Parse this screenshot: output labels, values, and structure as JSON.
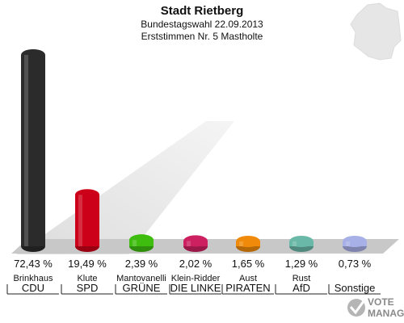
{
  "header": {
    "title": "Stadt Rietberg",
    "subtitle1": "Bundestagswahl 22.09.2013",
    "subtitle2": "Erststimmen Nr. 5 Mastholte"
  },
  "chart_data": {
    "type": "bar",
    "title": "Stadt Rietberg",
    "ylim": [
      0,
      75
    ],
    "grid": false,
    "categories": [
      {
        "candidate": "Brinkhaus",
        "party": "CDU"
      },
      {
        "candidate": "Klute",
        "party": "SPD"
      },
      {
        "candidate": "Mantovanelli",
        "party": "GRÜNE"
      },
      {
        "candidate": "Klein-Ridder",
        "party": "DIE LINKE"
      },
      {
        "candidate": "Aust",
        "party": "PIRATEN"
      },
      {
        "candidate": "Rust",
        "party": "AfD"
      },
      {
        "candidate": "",
        "party": "Sonstige"
      }
    ],
    "values": [
      72.43,
      19.49,
      2.39,
      2.02,
      1.65,
      1.29,
      0.73
    ],
    "value_labels": [
      "72,43 %",
      "19,49 %",
      "2,39 %",
      "2,02 %",
      "1,65 %",
      "1,29 %",
      "0,73 %"
    ],
    "colors": [
      "#2b2b2b",
      "#cc0018",
      "#3ebd0f",
      "#cc2060",
      "#f08a0a",
      "#6ab8a8",
      "#a8b0e8"
    ]
  },
  "logo": {
    "line1": "VOTE",
    "line2": "MANAGER"
  }
}
